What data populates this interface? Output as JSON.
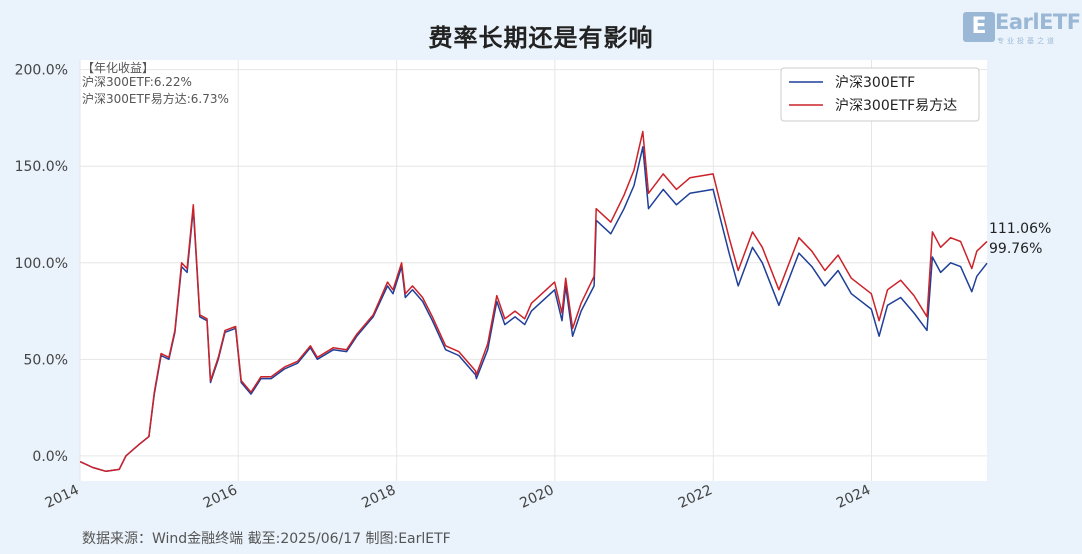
{
  "title": "费率长期还是有影响",
  "logo": {
    "brand": "EarlETF",
    "tagline": "专业投基之道"
  },
  "annotation": {
    "header": "【年化收益】",
    "lines": [
      "沪深300ETF:6.22%",
      "沪深300ETF易方达:6.73%"
    ]
  },
  "source": "数据来源：Wind金融终端 截至:2025/06/17 制图:EarlETF",
  "colors": {
    "series1": "#1f3f99",
    "series2": "#cc2229",
    "background": "#eaf3fb",
    "plot_background": "#ffffff"
  },
  "chart_data": {
    "type": "line",
    "title": "费率长期还是有影响",
    "xlabel": "",
    "ylabel": "",
    "x_range": [
      "2014-01-01",
      "2025-06-17"
    ],
    "ylim": [
      -13,
      205
    ],
    "yticks": [
      0,
      50,
      100,
      150,
      200
    ],
    "ytick_labels": [
      "0.0%",
      "50.0%",
      "100.0%",
      "150.0%",
      "200.0%"
    ],
    "xticks": [
      "2014",
      "2016",
      "2018",
      "2020",
      "2022",
      "2024"
    ],
    "grid": true,
    "legend_position": "top-right",
    "end_labels": [
      "111.06%",
      "99.76%"
    ],
    "series": [
      {
        "name": "沪深300ETF",
        "points": [
          [
            "2014-01-02",
            -3
          ],
          [
            "2014-03-01",
            -6
          ],
          [
            "2014-05-01",
            -8
          ],
          [
            "2014-07-01",
            -7
          ],
          [
            "2014-08-01",
            0
          ],
          [
            "2014-10-01",
            6
          ],
          [
            "2014-11-15",
            10
          ],
          [
            "2014-12-10",
            32
          ],
          [
            "2015-01-10",
            52
          ],
          [
            "2015-02-15",
            50
          ],
          [
            "2015-03-15",
            64
          ],
          [
            "2015-04-15",
            98
          ],
          [
            "2015-05-10",
            95
          ],
          [
            "2015-06-08",
            128
          ],
          [
            "2015-07-08",
            72
          ],
          [
            "2015-08-10",
            70
          ],
          [
            "2015-08-26",
            38
          ],
          [
            "2015-10-01",
            50
          ],
          [
            "2015-11-01",
            64
          ],
          [
            "2015-12-20",
            66
          ],
          [
            "2016-01-15",
            38
          ],
          [
            "2016-02-29",
            32
          ],
          [
            "2016-04-15",
            40
          ],
          [
            "2016-06-01",
            40
          ],
          [
            "2016-08-01",
            45
          ],
          [
            "2016-10-01",
            48
          ],
          [
            "2016-11-29",
            56
          ],
          [
            "2016-12-31",
            50
          ],
          [
            "2017-03-15",
            55
          ],
          [
            "2017-05-15",
            54
          ],
          [
            "2017-07-01",
            62
          ],
          [
            "2017-09-15",
            72
          ],
          [
            "2017-11-20",
            88
          ],
          [
            "2017-12-15",
            84
          ],
          [
            "2018-01-24",
            98
          ],
          [
            "2018-02-10",
            82
          ],
          [
            "2018-03-15",
            86
          ],
          [
            "2018-05-01",
            80
          ],
          [
            "2018-06-15",
            70
          ],
          [
            "2018-08-15",
            55
          ],
          [
            "2018-10-15",
            52
          ],
          [
            "2018-12-31",
            42
          ],
          [
            "2019-01-04",
            40
          ],
          [
            "2019-02-25",
            55
          ],
          [
            "2019-04-08",
            80
          ],
          [
            "2019-05-15",
            68
          ],
          [
            "2019-07-01",
            72
          ],
          [
            "2019-08-15",
            68
          ],
          [
            "2019-09-15",
            75
          ],
          [
            "2019-12-31",
            86
          ],
          [
            "2020-02-03",
            70
          ],
          [
            "2020-02-20",
            88
          ],
          [
            "2020-03-23",
            62
          ],
          [
            "2020-05-01",
            75
          ],
          [
            "2020-06-30",
            88
          ],
          [
            "2020-07-10",
            122
          ],
          [
            "2020-09-15",
            115
          ],
          [
            "2020-11-15",
            128
          ],
          [
            "2020-12-31",
            140
          ],
          [
            "2021-02-10",
            160
          ],
          [
            "2021-03-08",
            128
          ],
          [
            "2021-05-15",
            138
          ],
          [
            "2021-07-15",
            130
          ],
          [
            "2021-09-15",
            136
          ],
          [
            "2021-12-31",
            138
          ],
          [
            "2022-01-31",
            124
          ],
          [
            "2022-03-15",
            105
          ],
          [
            "2022-04-26",
            88
          ],
          [
            "2022-07-01",
            108
          ],
          [
            "2022-08-15",
            100
          ],
          [
            "2022-10-31",
            78
          ],
          [
            "2022-12-31",
            96
          ],
          [
            "2023-01-31",
            105
          ],
          [
            "2023-04-01",
            98
          ],
          [
            "2023-05-31",
            88
          ],
          [
            "2023-07-31",
            96
          ],
          [
            "2023-09-30",
            84
          ],
          [
            "2023-12-31",
            76
          ],
          [
            "2024-02-05",
            62
          ],
          [
            "2024-03-15",
            78
          ],
          [
            "2024-05-15",
            82
          ],
          [
            "2024-07-15",
            74
          ],
          [
            "2024-09-13",
            65
          ],
          [
            "2024-10-08",
            103
          ],
          [
            "2024-11-15",
            95
          ],
          [
            "2024-12-31",
            100
          ],
          [
            "2025-02-15",
            98
          ],
          [
            "2025-04-08",
            85
          ],
          [
            "2025-05-01",
            93
          ],
          [
            "2025-06-17",
            99.76
          ]
        ]
      },
      {
        "name": "沪深300ETF易方达",
        "points": [
          [
            "2014-01-02",
            -3
          ],
          [
            "2014-03-01",
            -6
          ],
          [
            "2014-05-01",
            -8
          ],
          [
            "2014-07-01",
            -7
          ],
          [
            "2014-08-01",
            0
          ],
          [
            "2014-10-01",
            6
          ],
          [
            "2014-11-15",
            10
          ],
          [
            "2014-12-10",
            33
          ],
          [
            "2015-01-10",
            53
          ],
          [
            "2015-02-15",
            51
          ],
          [
            "2015-03-15",
            65
          ],
          [
            "2015-04-15",
            100
          ],
          [
            "2015-05-10",
            97
          ],
          [
            "2015-06-08",
            130
          ],
          [
            "2015-07-08",
            73
          ],
          [
            "2015-08-10",
            71
          ],
          [
            "2015-08-26",
            39
          ],
          [
            "2015-10-01",
            51
          ],
          [
            "2015-11-01",
            65
          ],
          [
            "2015-12-20",
            67
          ],
          [
            "2016-01-15",
            39
          ],
          [
            "2016-02-29",
            33
          ],
          [
            "2016-04-15",
            41
          ],
          [
            "2016-06-01",
            41
          ],
          [
            "2016-08-01",
            46
          ],
          [
            "2016-10-01",
            49
          ],
          [
            "2016-11-29",
            57
          ],
          [
            "2016-12-31",
            51
          ],
          [
            "2017-03-15",
            56
          ],
          [
            "2017-05-15",
            55
          ],
          [
            "2017-07-01",
            63
          ],
          [
            "2017-09-15",
            73
          ],
          [
            "2017-11-20",
            90
          ],
          [
            "2017-12-15",
            86
          ],
          [
            "2018-01-24",
            100
          ],
          [
            "2018-02-10",
            84
          ],
          [
            "2018-03-15",
            88
          ],
          [
            "2018-05-01",
            82
          ],
          [
            "2018-06-15",
            72
          ],
          [
            "2018-08-15",
            57
          ],
          [
            "2018-10-15",
            54
          ],
          [
            "2018-12-31",
            44
          ],
          [
            "2019-01-04",
            42
          ],
          [
            "2019-02-25",
            58
          ],
          [
            "2019-04-08",
            83
          ],
          [
            "2019-05-15",
            71
          ],
          [
            "2019-07-01",
            75
          ],
          [
            "2019-08-15",
            71
          ],
          [
            "2019-09-15",
            79
          ],
          [
            "2019-12-31",
            90
          ],
          [
            "2020-02-03",
            74
          ],
          [
            "2020-02-20",
            92
          ],
          [
            "2020-03-23",
            66
          ],
          [
            "2020-05-01",
            79
          ],
          [
            "2020-06-30",
            93
          ],
          [
            "2020-07-10",
            128
          ],
          [
            "2020-09-15",
            121
          ],
          [
            "2020-11-15",
            135
          ],
          [
            "2020-12-31",
            148
          ],
          [
            "2021-02-10",
            168
          ],
          [
            "2021-03-08",
            136
          ],
          [
            "2021-05-15",
            146
          ],
          [
            "2021-07-15",
            138
          ],
          [
            "2021-09-15",
            144
          ],
          [
            "2021-12-31",
            146
          ],
          [
            "2022-01-31",
            132
          ],
          [
            "2022-03-15",
            113
          ],
          [
            "2022-04-26",
            96
          ],
          [
            "2022-07-01",
            116
          ],
          [
            "2022-08-15",
            108
          ],
          [
            "2022-10-31",
            86
          ],
          [
            "2022-12-31",
            104
          ],
          [
            "2023-01-31",
            113
          ],
          [
            "2023-04-01",
            106
          ],
          [
            "2023-05-31",
            96
          ],
          [
            "2023-07-31",
            104
          ],
          [
            "2023-09-30",
            92
          ],
          [
            "2023-12-31",
            84
          ],
          [
            "2024-02-05",
            70
          ],
          [
            "2024-03-15",
            86
          ],
          [
            "2024-05-15",
            91
          ],
          [
            "2024-07-15",
            83
          ],
          [
            "2024-09-13",
            72
          ],
          [
            "2024-10-08",
            116
          ],
          [
            "2024-11-15",
            108
          ],
          [
            "2024-12-31",
            113
          ],
          [
            "2025-02-15",
            111
          ],
          [
            "2025-04-08",
            97
          ],
          [
            "2025-05-01",
            106
          ],
          [
            "2025-06-17",
            111.06
          ]
        ]
      }
    ]
  }
}
